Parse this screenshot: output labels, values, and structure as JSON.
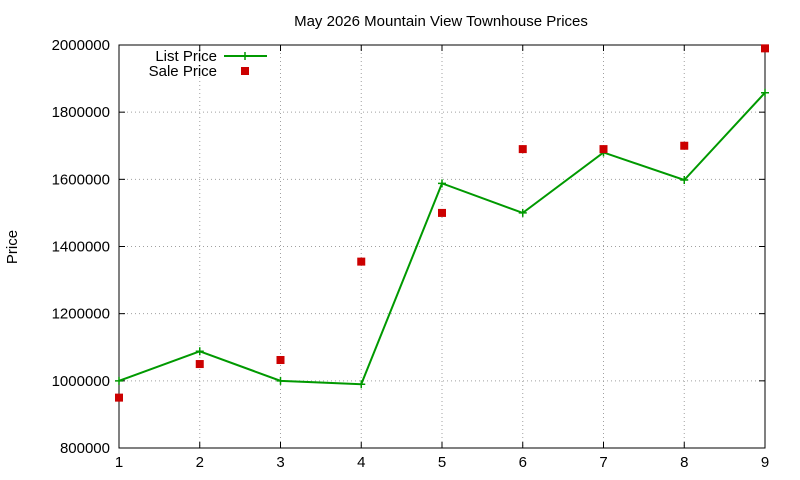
{
  "chart_data": {
    "type": "line",
    "title": "May 2026 Mountain View Townhouse Prices",
    "xlabel": "",
    "ylabel": "Price",
    "x": [
      1,
      2,
      3,
      4,
      5,
      6,
      7,
      8,
      9
    ],
    "x_ticks": [
      "1",
      "2",
      "3",
      "4",
      "5",
      "6",
      "7",
      "8",
      "9"
    ],
    "xlim": [
      1,
      9
    ],
    "ylim": [
      800000,
      2000000
    ],
    "y_ticks": [
      "800000",
      "1000000",
      "1200000",
      "1400000",
      "1600000",
      "1800000",
      "2000000"
    ],
    "grid": true,
    "legend_position": "top-left",
    "series": [
      {
        "name": "List Price",
        "style": "line-with-plus-markers",
        "color": "#009900",
        "values": [
          1000000,
          1088000,
          1000000,
          990000,
          1588000,
          1500000,
          1680000,
          1598000,
          1858000
        ]
      },
      {
        "name": "Sale Price",
        "style": "square-markers",
        "color": "#cc0000",
        "values": [
          950000,
          1050000,
          1062000,
          1355000,
          1500000,
          1690000,
          1690000,
          1700000,
          1990000
        ]
      }
    ]
  }
}
